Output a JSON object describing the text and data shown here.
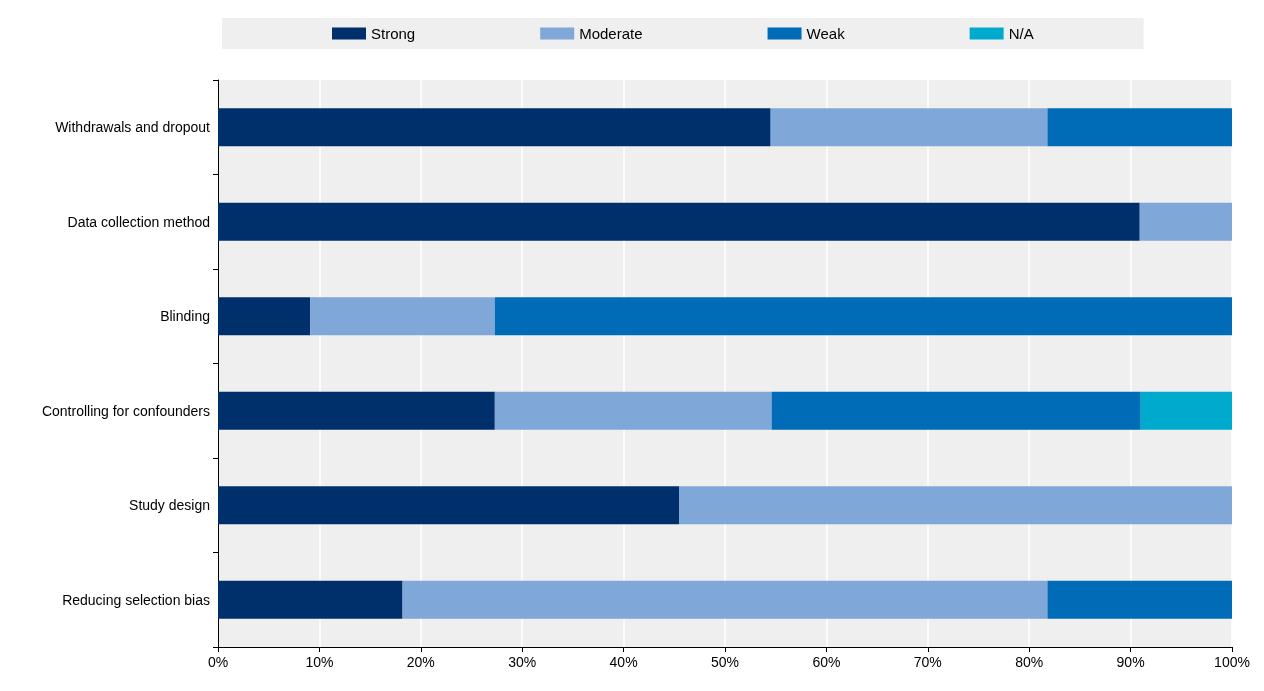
{
  "chart_data": {
    "type": "bar",
    "orientation": "horizontal",
    "stacked": true,
    "categories": [
      "Withdrawals and dropout",
      "Data collection method",
      "Blinding",
      "Controlling for confounders",
      "Study design",
      "Reducing selection bias"
    ],
    "series": [
      {
        "name": "Strong",
        "color": "#00306b",
        "values": [
          54.5,
          90.9,
          9.1,
          27.3,
          45.5,
          18.2
        ]
      },
      {
        "name": "Moderate",
        "color": "#7fa7d8",
        "values": [
          27.3,
          9.1,
          18.2,
          27.3,
          54.5,
          63.6
        ]
      },
      {
        "name": "Weak",
        "color": "#006bb6",
        "values": [
          18.2,
          null,
          72.7,
          36.4,
          null,
          18.2
        ]
      },
      {
        "name": "N/A",
        "color": "#00aacc",
        "values": [
          null,
          null,
          null,
          9.1,
          null,
          null
        ]
      }
    ],
    "xlim": [
      0,
      100
    ],
    "xticks": [
      {
        "value": 0,
        "label": "0%"
      },
      {
        "value": 10,
        "label": "10%"
      },
      {
        "value": 20,
        "label": "20%"
      },
      {
        "value": 30,
        "label": "30%"
      },
      {
        "value": 40,
        "label": "40%"
      },
      {
        "value": 50,
        "label": "50%"
      },
      {
        "value": 60,
        "label": "60%"
      },
      {
        "value": 70,
        "label": "70%"
      },
      {
        "value": 80,
        "label": "80%"
      },
      {
        "value": 90,
        "label": "90%"
      },
      {
        "value": 100,
        "label": "100%"
      }
    ],
    "grid": "x",
    "legend": "top"
  }
}
